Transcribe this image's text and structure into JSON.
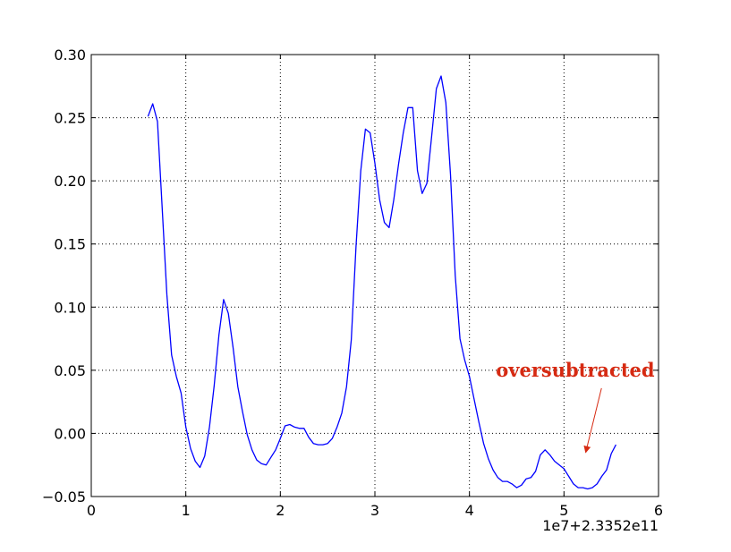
{
  "chart_data": {
    "type": "line",
    "title": "",
    "xlabel": "",
    "ylabel": "",
    "xlim": [
      0,
      6
    ],
    "ylim": [
      -0.05,
      0.3
    ],
    "x_ticks": [
      0,
      1,
      2,
      3,
      4,
      5,
      6
    ],
    "x_tick_labels": [
      "0",
      "1",
      "2",
      "3",
      "4",
      "5",
      "6"
    ],
    "y_ticks": [
      -0.05,
      0.0,
      0.05,
      0.1,
      0.15,
      0.2,
      0.25,
      0.3
    ],
    "y_tick_labels": [
      "−0.05",
      "0.00",
      "0.05",
      "0.10",
      "0.15",
      "0.20",
      "0.25",
      "0.30"
    ],
    "x_offset_label": "1e7+2.3352e11",
    "grid": true,
    "colors": {
      "line": "#0000ff",
      "annotation": "#d62a12",
      "grid": "#000000"
    },
    "series": [
      {
        "x": [
          0.6,
          0.65,
          0.7,
          0.75,
          0.8,
          0.85,
          0.9,
          0.95,
          1.0,
          1.05,
          1.1,
          1.15,
          1.2,
          1.25,
          1.3,
          1.35,
          1.4,
          1.45,
          1.5,
          1.55,
          1.6,
          1.65,
          1.7,
          1.75,
          1.8,
          1.85,
          1.9,
          1.95,
          2.0,
          2.05,
          2.1,
          2.15,
          2.2,
          2.25,
          2.3,
          2.35,
          2.4,
          2.45,
          2.5,
          2.55,
          2.6,
          2.65,
          2.7,
          2.75,
          2.8,
          2.85,
          2.9,
          2.95,
          3.0,
          3.05,
          3.1,
          3.15,
          3.2,
          3.25,
          3.3,
          3.35,
          3.4,
          3.45,
          3.5,
          3.55,
          3.6,
          3.65,
          3.7,
          3.75,
          3.8,
          3.85,
          3.9,
          3.95,
          4.0,
          4.05,
          4.1,
          4.15,
          4.2,
          4.25,
          4.3,
          4.35,
          4.4,
          4.45,
          4.5,
          4.55,
          4.6,
          4.65,
          4.7,
          4.75,
          4.8,
          4.85,
          4.9,
          4.95,
          5.0,
          5.05,
          5.1,
          5.15,
          5.2,
          5.25,
          5.3,
          5.35,
          5.4,
          5.45,
          5.5,
          5.55
        ],
        "y": [
          0.251,
          0.261,
          0.247,
          0.178,
          0.11,
          0.062,
          0.045,
          0.032,
          0.005,
          -0.012,
          -0.022,
          -0.027,
          -0.018,
          0.005,
          0.038,
          0.078,
          0.106,
          0.095,
          0.068,
          0.037,
          0.017,
          -0.001,
          -0.013,
          -0.021,
          -0.024,
          -0.025,
          -0.019,
          -0.013,
          -0.004,
          0.006,
          0.007,
          0.005,
          0.004,
          0.004,
          -0.003,
          -0.008,
          -0.009,
          -0.009,
          -0.008,
          -0.004,
          0.005,
          0.016,
          0.037,
          0.074,
          0.148,
          0.208,
          0.241,
          0.238,
          0.214,
          0.185,
          0.167,
          0.163,
          0.185,
          0.213,
          0.238,
          0.258,
          0.258,
          0.208,
          0.19,
          0.198,
          0.235,
          0.273,
          0.283,
          0.262,
          0.205,
          0.125,
          0.075,
          0.058,
          0.045,
          0.027,
          0.009,
          -0.008,
          -0.02,
          -0.029,
          -0.035,
          -0.038,
          -0.038,
          -0.04,
          -0.043,
          -0.041,
          -0.036,
          -0.035,
          -0.03,
          -0.017,
          -0.013,
          -0.017,
          -0.022,
          -0.025,
          -0.028,
          -0.034,
          -0.04,
          -0.043,
          -0.043,
          -0.044,
          -0.043,
          -0.04,
          -0.034,
          -0.029,
          -0.016,
          -0.009
        ]
      }
    ],
    "annotations": [
      {
        "text": "oversubtracted",
        "text_x": 4.28,
        "text_y": 0.045,
        "arrow_x": 5.23,
        "arrow_y": -0.015
      }
    ]
  }
}
